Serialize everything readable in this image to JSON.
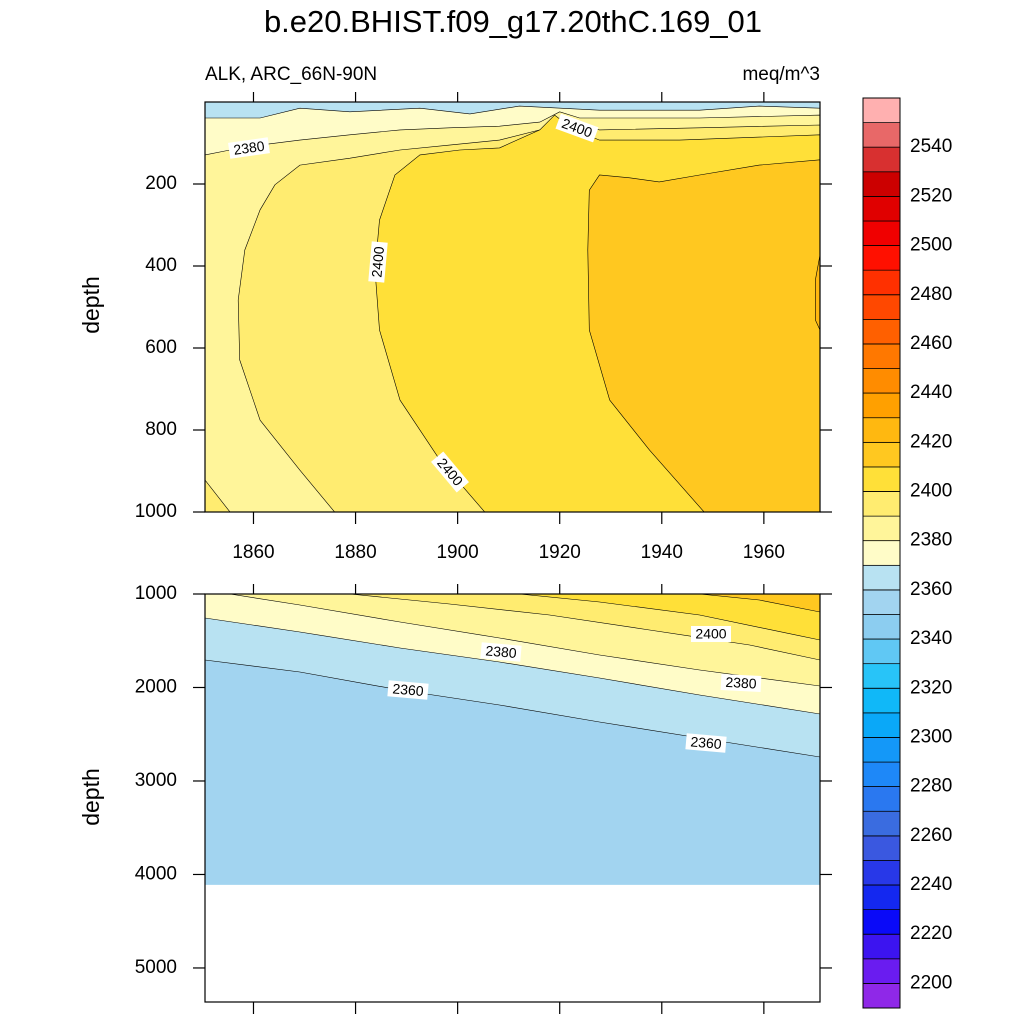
{
  "title": "b.e20.BHIST.f09_g17.20thC.169_01",
  "colorbar": {
    "levels": [
      2200,
      2210,
      2220,
      2230,
      2240,
      2250,
      2260,
      2270,
      2280,
      2290,
      2300,
      2310,
      2320,
      2330,
      2340,
      2350,
      2360,
      2370,
      2380,
      2390,
      2400,
      2410,
      2420,
      2430,
      2440,
      2450,
      2460,
      2470,
      2480,
      2490,
      2500,
      2510,
      2520,
      2530,
      2540,
      2550
    ],
    "colors": [
      "#8f28e8",
      "#6a1cf0",
      "#3c14f0",
      "#0a0af8",
      "#1428f0",
      "#2838e8",
      "#3a58e0",
      "#3a6ce0",
      "#2a78f0",
      "#1e88f8",
      "#1498f8",
      "#0aa8f8",
      "#10b8f8",
      "#28c4f8",
      "#60c8f4",
      "#8ccdf0",
      "#a2d4f0",
      "#b8e2f2",
      "#fffcc8",
      "#fff59a",
      "#ffec70",
      "#ffe038",
      "#ffc820",
      "#ffb810",
      "#ffa000",
      "#ff8c00",
      "#ff7800",
      "#ff6000",
      "#ff4800",
      "#ff3000",
      "#ff1000",
      "#f00000",
      "#e00000",
      "#cc0000",
      "#d83030",
      "#e86868",
      "#ffb0b0"
    ],
    "ticks": [
      2200,
      2220,
      2240,
      2260,
      2280,
      2300,
      2320,
      2340,
      2360,
      2380,
      2400,
      2420,
      2440,
      2460,
      2480,
      2500,
      2520,
      2540
    ]
  },
  "chart_data": [
    {
      "type": "contour",
      "subtitle_left": "ALK, ARC_66N-90N",
      "subtitle_right": "meq/m^3",
      "ylabel": "depth",
      "xlim": [
        1850.5,
        1971
      ],
      "ylim": [
        0,
        1000
      ],
      "y_reversed": true,
      "xticks": [
        1860,
        1880,
        1900,
        1920,
        1940,
        1960
      ],
      "yticks": [
        200,
        400,
        600,
        800,
        1000
      ],
      "contours": [
        {
          "level": 2360,
          "points": [
            [
              1850.5,
              0
            ],
            [
              1971,
              0
            ],
            [
              1971,
              1000
            ],
            [
              1850.5,
              1000
            ]
          ]
        },
        {
          "level": 2370,
          "points": [
            [
              1850.5,
              39
            ],
            [
              1861.3,
              39
            ],
            [
              1869.1,
              15
            ],
            [
              1878.9,
              24
            ],
            [
              1892.6,
              15
            ],
            [
              1902.4,
              29
            ],
            [
              1912.1,
              10
            ],
            [
              1927.8,
              20
            ],
            [
              1947.4,
              20
            ],
            [
              1959.1,
              10
            ],
            [
              1971,
              15
            ],
            [
              1971,
              1000
            ],
            [
              1850.5,
              1000
            ]
          ]
        },
        {
          "level": 2380,
          "points": [
            [
              1850.5,
              129
            ],
            [
              1855.4,
              117
            ],
            [
              1861.3,
              105
            ],
            [
              1869.1,
              93
            ],
            [
              1878.9,
              80
            ],
            [
              1888.7,
              68
            ],
            [
              1898.4,
              63
            ],
            [
              1908.2,
              59
            ],
            [
              1916.1,
              49
            ],
            [
              1920,
              24
            ],
            [
              1923.9,
              39
            ],
            [
              1947.4,
              39
            ],
            [
              1971,
              32
            ],
            [
              1971,
              1000
            ],
            [
              1850.5,
              1000
            ]
          ]
        },
        {
          "level": 2390,
          "points": [
            [
              1875.9,
              1000
            ],
            [
              1869.1,
              898
            ],
            [
              1861.3,
              776
            ],
            [
              1857.3,
              629
            ],
            [
              1857,
              483
            ],
            [
              1858.3,
              361
            ],
            [
              1861.3,
              263
            ],
            [
              1864.2,
              202
            ],
            [
              1869.1,
              154
            ],
            [
              1878.9,
              137
            ],
            [
              1888.7,
              117
            ],
            [
              1898.4,
              105
            ],
            [
              1908.2,
              93
            ],
            [
              1916.1,
              68
            ],
            [
              1920,
              39
            ],
            [
              1927.8,
              68
            ],
            [
              1947.4,
              63
            ],
            [
              1971,
              56
            ],
            [
              1971,
              1000
            ]
          ]
        },
        {
          "level": 2390,
          "points": [
            [
              1850.5,
              922
            ],
            [
              1855.4,
              1000
            ],
            [
              1850.5,
              1000
            ]
          ]
        },
        {
          "level": 2400,
          "points": [
            [
              1905.3,
              1000
            ],
            [
              1896.5,
              873
            ],
            [
              1888.7,
              727
            ],
            [
              1884.7,
              556
            ],
            [
              1883.8,
              410
            ],
            [
              1884.7,
              288
            ],
            [
              1887.7,
              178
            ],
            [
              1892.6,
              129
            ],
            [
              1900.4,
              117
            ],
            [
              1908.2,
              112
            ],
            [
              1916.1,
              68
            ],
            [
              1919,
              32
            ],
            [
              1922.9,
              68
            ],
            [
              1927.8,
              93
            ],
            [
              1943.5,
              93
            ],
            [
              1971,
              80
            ],
            [
              1971,
              1000
            ]
          ]
        },
        {
          "level": 2410,
          "points": [
            [
              1948.3,
              1000
            ],
            [
              1937.6,
              849
            ],
            [
              1929.8,
              727
            ],
            [
              1925.8,
              556
            ],
            [
              1925.5,
              361
            ],
            [
              1925.8,
              215
            ],
            [
              1927.8,
              178
            ],
            [
              1933.7,
              185
            ],
            [
              1939.5,
              195
            ],
            [
              1947.4,
              178
            ],
            [
              1959.1,
              154
            ],
            [
              1971,
              141
            ],
            [
              1971,
              1000
            ]
          ]
        },
        {
          "level": 2420,
          "points": [
            [
              1971,
              373
            ],
            [
              1970.1,
              434
            ],
            [
              1970.1,
              532
            ],
            [
              1971,
              556
            ]
          ]
        }
      ]
    },
    {
      "type": "contour",
      "ylabel": "depth",
      "xlim": [
        1850.5,
        1971
      ],
      "ylim": [
        1000,
        5364
      ],
      "y_reversed": true,
      "xticks": [
        1860,
        1880,
        1900,
        1920,
        1940,
        1960
      ],
      "yticks": [
        1000,
        2000,
        3000,
        4000,
        5000
      ],
      "contours": [
        {
          "level": 2350,
          "points": [
            [
              1850.5,
              1000
            ],
            [
              1971,
              1000
            ],
            [
              1971,
              4112
            ],
            [
              1850.5,
              4112
            ]
          ]
        },
        {
          "level": 2360,
          "points": [
            [
              1850.5,
              1706
            ],
            [
              1869.1,
              1834
            ],
            [
              1888.7,
              2027
            ],
            [
              1908.2,
              2187
            ],
            [
              1927.8,
              2369
            ],
            [
              1947.4,
              2540
            ],
            [
              1971,
              2743
            ],
            [
              1971,
              1000
            ],
            [
              1850.5,
              1000
            ]
          ]
        },
        {
          "level": 2370,
          "points": [
            [
              1850.5,
              1257
            ],
            [
              1869.1,
              1406
            ],
            [
              1888.7,
              1578
            ],
            [
              1908.2,
              1727
            ],
            [
              1927.8,
              1898
            ],
            [
              1947.4,
              2080
            ],
            [
              1971,
              2283
            ],
            [
              1971,
              1000
            ],
            [
              1850.5,
              1000
            ]
          ]
        },
        {
          "level": 2380,
          "points": [
            [
              1855.4,
              1000
            ],
            [
              1869.1,
              1118
            ],
            [
              1888.7,
              1299
            ],
            [
              1908.2,
              1471
            ],
            [
              1927.8,
              1652
            ],
            [
              1947.4,
              1813
            ],
            [
              1971,
              1984
            ],
            [
              1971,
              1000
            ]
          ]
        },
        {
          "level": 2390,
          "points": [
            [
              1878.9,
              1000
            ],
            [
              1898.4,
              1107
            ],
            [
              1918,
              1225
            ],
            [
              1937.6,
              1385
            ],
            [
              1957.2,
              1545
            ],
            [
              1971,
              1706
            ],
            [
              1971,
              1000
            ]
          ]
        },
        {
          "level": 2400,
          "points": [
            [
              1912.1,
              1000
            ],
            [
              1927.8,
              1086
            ],
            [
              1947.4,
              1225
            ],
            [
              1971,
              1492
            ],
            [
              1971,
              1000
            ]
          ]
        },
        {
          "level": 2410,
          "points": [
            [
              1947.4,
              1000
            ],
            [
              1959.1,
              1064
            ],
            [
              1971,
              1193
            ],
            [
              1971,
              1000
            ]
          ]
        }
      ]
    }
  ]
}
